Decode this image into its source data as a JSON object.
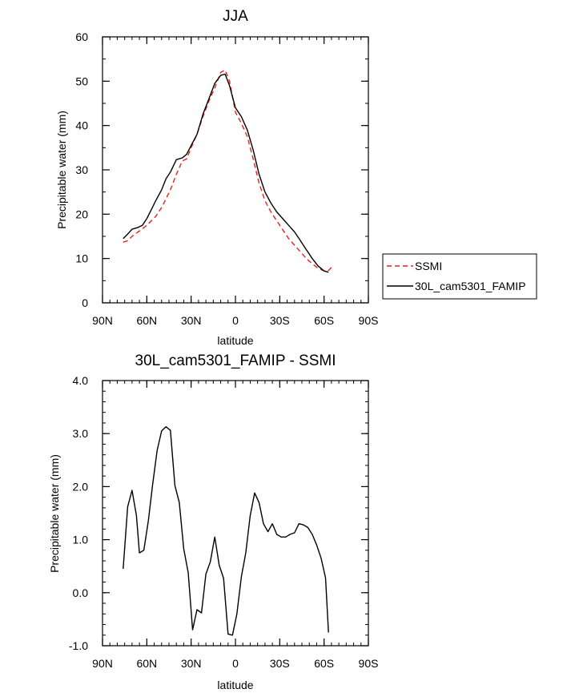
{
  "chart_data": [
    {
      "type": "line",
      "title": "JJA",
      "xlabel": "latitude",
      "ylabel": "Precipitable water (mm)",
      "xlim": [
        -90,
        90
      ],
      "ylim": [
        0,
        60
      ],
      "x_ticks": [
        -90,
        -60,
        -30,
        0,
        30,
        60,
        90
      ],
      "x_tick_labels": [
        "90N",
        "60N",
        "30N",
        "0",
        "30S",
        "60S",
        "90S"
      ],
      "y_ticks": [
        0,
        10,
        20,
        30,
        40,
        50,
        60
      ],
      "y_tick_labels": [
        "0",
        "10",
        "20",
        "30",
        "40",
        "50",
        "60"
      ],
      "legend_position": "right",
      "series": [
        {
          "name": "SSMI",
          "color": "#e8201c",
          "dash": "dashed",
          "x": [
            -76,
            -73,
            -70,
            -66,
            -63,
            -60,
            -57,
            -54,
            -50,
            -47,
            -44,
            -40,
            -36,
            -33,
            -30,
            -26,
            -22,
            -18,
            -14,
            -10,
            -7,
            -4,
            0,
            4,
            8,
            12,
            16,
            20,
            24,
            28,
            32,
            36,
            40,
            44,
            48,
            52,
            56,
            60,
            63,
            66
          ],
          "y": [
            13.7,
            14.0,
            15.0,
            16.0,
            16.7,
            17.5,
            18.5,
            19.5,
            21.5,
            23.5,
            25.5,
            29.0,
            32.0,
            32.5,
            35.0,
            38.0,
            42.0,
            45.5,
            48.5,
            52.0,
            52.5,
            50.0,
            43.0,
            40.5,
            37.5,
            32.5,
            27.0,
            23.0,
            20.5,
            18.5,
            16.5,
            14.5,
            13.0,
            11.5,
            10.0,
            8.8,
            7.8,
            7.2,
            7.3,
            8.3
          ]
        },
        {
          "name": "30L_cam5301_FAMIP",
          "color": "#000000",
          "dash": "solid",
          "x": [
            -76,
            -73,
            -70,
            -66,
            -63,
            -60,
            -57,
            -54,
            -50,
            -47,
            -44,
            -40,
            -36,
            -33,
            -30,
            -26,
            -22,
            -18,
            -14,
            -10,
            -7,
            -4,
            0,
            4,
            8,
            12,
            16,
            20,
            24,
            28,
            32,
            36,
            40,
            44,
            48,
            52,
            56,
            60,
            63
          ],
          "y": [
            14.5,
            15.5,
            16.6,
            17.0,
            17.5,
            19.0,
            21.0,
            23.0,
            25.5,
            28.0,
            29.5,
            32.3,
            32.7,
            33.5,
            35.5,
            38.0,
            42.5,
            46.0,
            49.5,
            51.3,
            51.6,
            49.0,
            44.0,
            42.0,
            39.0,
            34.5,
            29.0,
            25.0,
            22.5,
            20.5,
            19.0,
            17.5,
            16.0,
            14.0,
            12.0,
            10.0,
            8.3,
            7.2,
            6.9
          ]
        }
      ]
    },
    {
      "type": "line",
      "title": "30L_cam5301_FAMIP - SSMI",
      "xlabel": "latitude",
      "ylabel": "Precipitable water (mm)",
      "xlim": [
        -90,
        90
      ],
      "ylim": [
        -1.0,
        4.0
      ],
      "x_ticks": [
        -90,
        -60,
        -30,
        0,
        30,
        60,
        90
      ],
      "x_tick_labels": [
        "90N",
        "60N",
        "30N",
        "0",
        "30S",
        "60S",
        "90S"
      ],
      "y_ticks": [
        -1.0,
        0.0,
        1.0,
        2.0,
        3.0,
        4.0
      ],
      "y_tick_labels": [
        "-1.0",
        "0.0",
        "1.0",
        "2.0",
        "3.0",
        "4.0"
      ],
      "series": [
        {
          "color": "#000000",
          "dash": "solid",
          "x": [
            -76,
            -73,
            -70,
            -67,
            -65,
            -62,
            -59,
            -56,
            -53,
            -50,
            -47,
            -44,
            -41,
            -38,
            -35,
            -32,
            -29,
            -26,
            -23,
            -20,
            -17,
            -14,
            -11,
            -8,
            -5,
            -2,
            1,
            4,
            7,
            10,
            13,
            16,
            19,
            22,
            25,
            28,
            31,
            34,
            37,
            40,
            43,
            46,
            49,
            52,
            55,
            58,
            61,
            63
          ],
          "y": [
            0.45,
            1.62,
            1.93,
            1.45,
            0.75,
            0.8,
            1.35,
            2.05,
            2.68,
            3.05,
            3.13,
            3.06,
            2.02,
            1.7,
            0.83,
            0.38,
            -0.7,
            -0.32,
            -0.38,
            0.35,
            0.58,
            1.05,
            0.52,
            0.27,
            -0.78,
            -0.8,
            -0.4,
            0.3,
            0.75,
            1.45,
            1.88,
            1.7,
            1.3,
            1.15,
            1.3,
            1.1,
            1.05,
            1.05,
            1.1,
            1.13,
            1.3,
            1.28,
            1.23,
            1.1,
            0.9,
            0.65,
            0.28,
            -0.75
          ]
        }
      ]
    }
  ]
}
